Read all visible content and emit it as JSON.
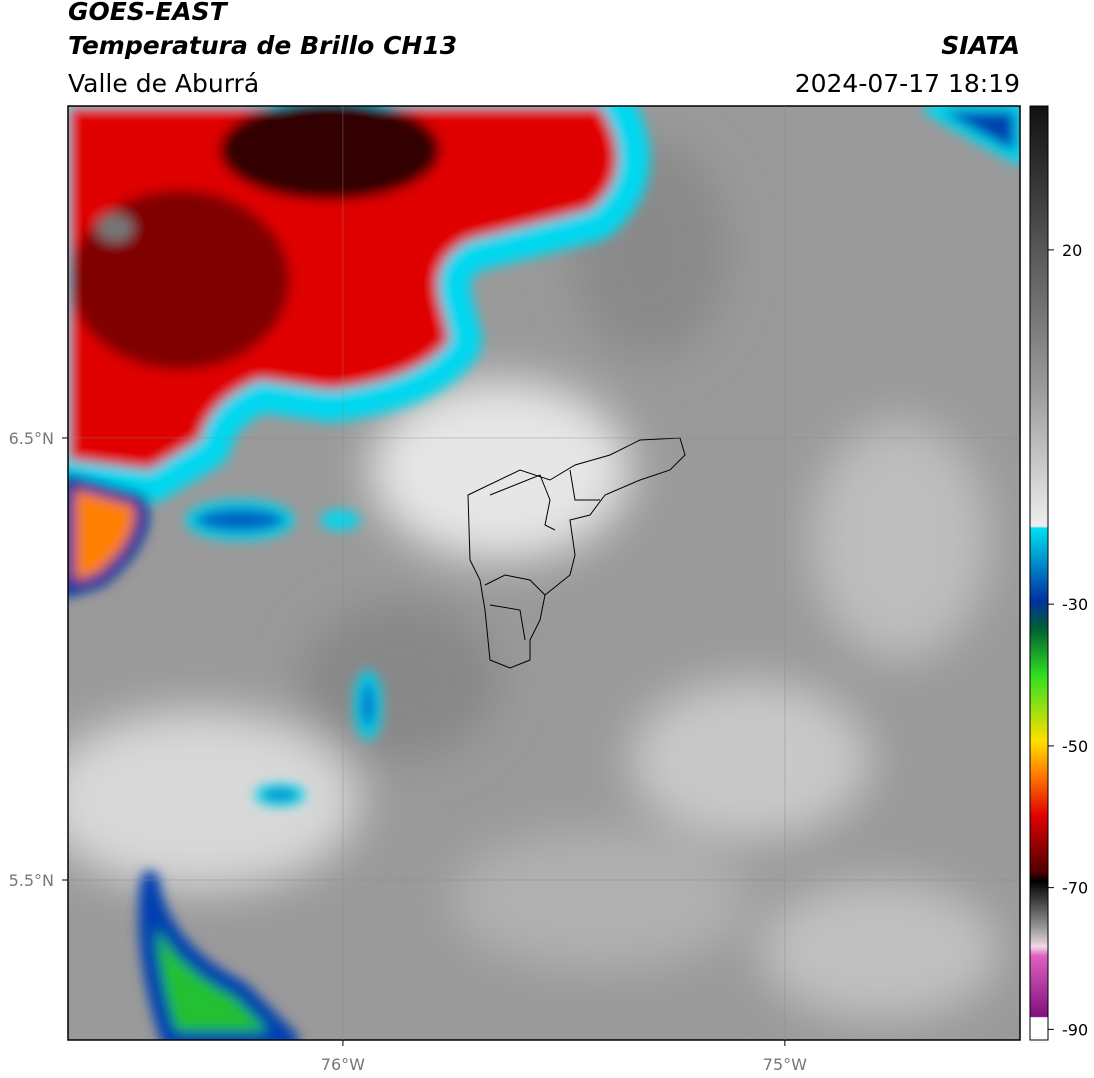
{
  "header": {
    "title": "GOES-EAST",
    "subtitle": "Temperatura de Brillo CH13",
    "region": "Valle de Aburrá",
    "source": "SIATA",
    "datetime": "2024-07-17 18:19"
  },
  "map": {
    "lonlim": [
      -76.622,
      -74.468
    ],
    "latlim": [
      5.138,
      7.251
    ],
    "lonticks": [
      {
        "value": -76,
        "label": "76°W"
      },
      {
        "value": -75,
        "label": "75°W"
      }
    ],
    "latticks": [
      {
        "value": 6.5,
        "label": "6.5°N"
      },
      {
        "value": 5.5,
        "label": "5.5°N"
      }
    ]
  },
  "colorbar": {
    "lim": [
      -91.5,
      40.3
    ],
    "ticks": [
      20,
      -30,
      -50,
      -70,
      -90
    ]
  }
}
